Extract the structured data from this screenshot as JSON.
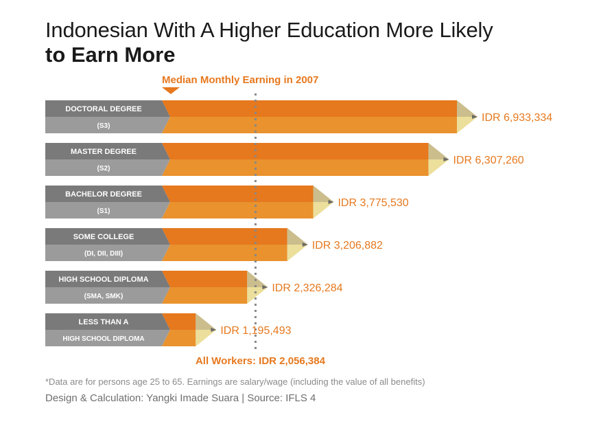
{
  "title_line1": "Indonesian With A Higher Education More Likely",
  "title_line2": "to Earn More",
  "chart_data": {
    "type": "bar",
    "orientation": "horizontal",
    "subtitle": "Median Monthly Earning in 2007",
    "categories": [
      {
        "line1": "DOCTORAL DEGREE",
        "line2": "(S3)"
      },
      {
        "line1": "MASTER DEGREE",
        "line2": "(S2)"
      },
      {
        "line1": "BACHELOR DEGREE",
        "line2": "(S1)"
      },
      {
        "line1": "SOME COLLEGE",
        "line2": "(DI, DII, DIII)"
      },
      {
        "line1": "HIGH SCHOOL DIPLOMA",
        "line2": "(SMA, SMK)"
      },
      {
        "line1": "LESS THAN A",
        "line2": "HIGH SCHOOL DIPLOMA"
      }
    ],
    "values": [
      6933334,
      6307260,
      3775530,
      3206882,
      2326284,
      1195493
    ],
    "value_labels": [
      "IDR 6,933,334",
      "IDR 6,307,260",
      "IDR 3,775,530",
      "IDR 3,206,882",
      "IDR 2,326,284",
      "IDR 1,195,493"
    ],
    "reference_line": {
      "value": 2056384,
      "label": "All Workers: IDR 2,056,384",
      "style": "dotted"
    },
    "colors": {
      "bar_top": "#e6781e",
      "bar_bottom": "#e9922e",
      "tip_top": "#cbbd8c",
      "tip_bottom": "#ecdf9b",
      "label_top": "#7a7a7a",
      "label_bottom": "#9b9b9b",
      "accent": "#e6781e",
      "reference_line": "#888888"
    }
  },
  "footnote": "*Data are for persons age 25 to 65. Earnings are salary/wage (including the value of all benefits)",
  "credit": "Design & Calculation: Yangki Imade Suara | Source: IFLS 4"
}
